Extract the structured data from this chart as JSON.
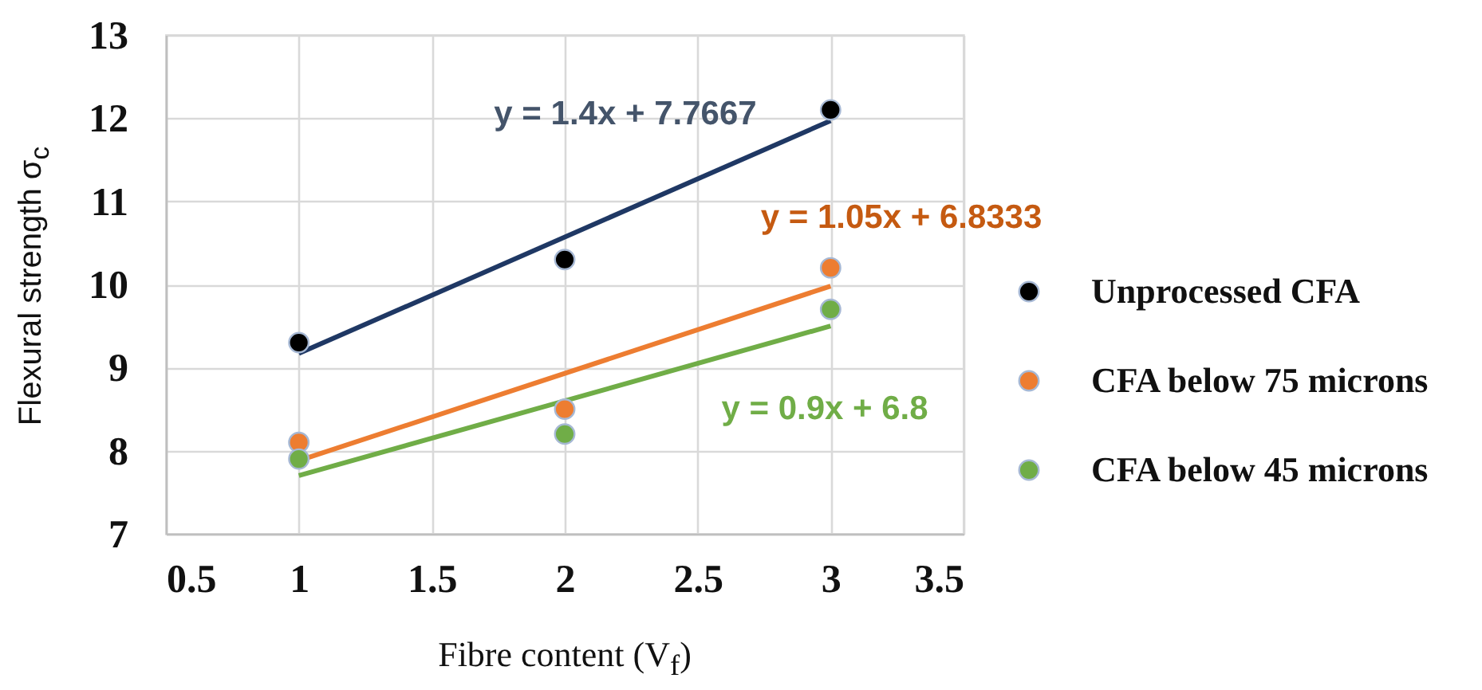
{
  "chart_data": {
    "type": "scatter",
    "xlabel": "Fibre content (V$_{f}$)",
    "ylabel": "Flexural strength σ$_{c}$",
    "xlim": [
      0.5,
      3.5
    ],
    "xticks": [
      0.5,
      1,
      1.5,
      2,
      2.5,
      3,
      3.5
    ],
    "ylim": [
      7,
      13
    ],
    "yticks": [
      7,
      8,
      9,
      10,
      11,
      12,
      13
    ],
    "grid": true,
    "legend": "right",
    "series": [
      {
        "name": "Unprocessed CFA",
        "marker": "circle",
        "color": "#000000",
        "x": [
          1,
          2,
          3
        ],
        "values": [
          9.3,
          10.3,
          12.1
        ]
      },
      {
        "name": "CFA below 75 microns",
        "marker": "circle",
        "color": "#ed7d31",
        "x": [
          1,
          2,
          3
        ],
        "values": [
          8.1,
          8.5,
          10.2
        ]
      },
      {
        "name": "CFA below 45 microns",
        "marker": "circle",
        "color": "#70ad47",
        "x": [
          1,
          2,
          3
        ],
        "values": [
          7.9,
          8.2,
          9.7
        ]
      },
      {
        "type": "line",
        "marker": "none",
        "color": "#1f3864",
        "x": [
          1,
          3
        ],
        "values": [
          9.17,
          11.97
        ]
      },
      {
        "type": "line",
        "marker": "none",
        "color": "#ed7d31",
        "x": [
          1,
          3
        ],
        "values": [
          7.88,
          9.98
        ]
      },
      {
        "type": "line",
        "marker": "none",
        "color": "#70ad47",
        "x": [
          1,
          3
        ],
        "values": [
          7.7,
          9.5
        ]
      }
    ],
    "annotations": [
      "y = 1.4x + 7.7667",
      "y = 1.05x + 6.8333",
      "y = 0.9x + 6.8"
    ]
  }
}
